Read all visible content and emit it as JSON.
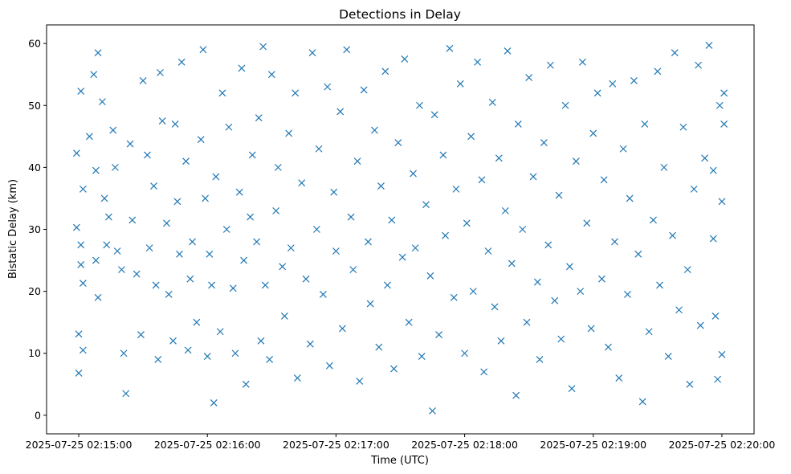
{
  "chart_data": {
    "type": "scatter",
    "title": "Detections in Delay",
    "xlabel": "Time (UTC)",
    "ylabel": "Bistatic Delay (km)",
    "marker": "x",
    "color": "#1f77b4",
    "grid": false,
    "legend": "none",
    "xlim": [
      "2025-07-25 02:14:45",
      "2025-07-25 02:20:15"
    ],
    "ylim": [
      -3,
      63
    ],
    "x_ticks": [
      "2025-07-25 02:15:00",
      "2025-07-25 02:16:00",
      "2025-07-25 02:17:00",
      "2025-07-25 02:18:00",
      "2025-07-25 02:19:00",
      "2025-07-25 02:20:00"
    ],
    "y_ticks": [
      "0",
      "10",
      "20",
      "30",
      "40",
      "50",
      "60"
    ],
    "y_tick_values": [
      0,
      10,
      20,
      30,
      40,
      50,
      60
    ],
    "series": [
      {
        "points": [
          [
            "02:14:59",
            42.3
          ],
          [
            "02:14:59",
            30.3
          ],
          [
            "02:15:00",
            13.1
          ],
          [
            "02:15:01",
            52.3
          ],
          [
            "02:15:01",
            27.5
          ],
          [
            "02:15:01",
            24.3
          ],
          [
            "02:15:02",
            21.3
          ],
          [
            "02:15:02",
            10.5
          ],
          [
            "02:15:00",
            6.8
          ],
          [
            "02:15:02",
            36.5
          ],
          [
            "02:15:05",
            45.0
          ],
          [
            "02:15:07",
            55.0
          ],
          [
            "02:15:09",
            58.5
          ],
          [
            "02:15:08",
            39.5
          ],
          [
            "02:15:08",
            25.0
          ],
          [
            "02:15:09",
            19.0
          ],
          [
            "02:15:11",
            50.6
          ],
          [
            "02:15:12",
            35.0
          ],
          [
            "02:15:13",
            27.5
          ],
          [
            "02:15:14",
            32.0
          ],
          [
            "02:15:16",
            46.0
          ],
          [
            "02:15:17",
            40.0
          ],
          [
            "02:15:18",
            26.5
          ],
          [
            "02:15:20",
            23.5
          ],
          [
            "02:15:21",
            10.0
          ],
          [
            "02:15:22",
            3.5
          ],
          [
            "02:15:24",
            43.8
          ],
          [
            "02:15:25",
            31.5
          ],
          [
            "02:15:27",
            22.8
          ],
          [
            "02:15:29",
            13.0
          ],
          [
            "02:15:30",
            54.0
          ],
          [
            "02:15:32",
            42.0
          ],
          [
            "02:15:33",
            27.0
          ],
          [
            "02:15:35",
            37.0
          ],
          [
            "02:15:36",
            21.0
          ],
          [
            "02:15:37",
            9.0
          ],
          [
            "02:15:38",
            55.3
          ],
          [
            "02:15:39",
            47.5
          ],
          [
            "02:15:41",
            31.0
          ],
          [
            "02:15:42",
            19.5
          ],
          [
            "02:15:44",
            12.0
          ],
          [
            "02:15:45",
            47.0
          ],
          [
            "02:15:46",
            34.5
          ],
          [
            "02:15:47",
            26.0
          ],
          [
            "02:15:48",
            57.0
          ],
          [
            "02:15:50",
            41.0
          ],
          [
            "02:15:51",
            10.5
          ],
          [
            "02:15:52",
            22.0
          ],
          [
            "02:15:53",
            28.0
          ],
          [
            "02:15:55",
            15.0
          ],
          [
            "02:15:57",
            44.5
          ],
          [
            "02:15:59",
            35.0
          ],
          [
            "02:16:00",
            9.5
          ],
          [
            "02:15:58",
            59.0
          ],
          [
            "02:16:01",
            26.0
          ],
          [
            "02:16:02",
            21.0
          ],
          [
            "02:16:03",
            2.0
          ],
          [
            "02:16:04",
            38.5
          ],
          [
            "02:16:06",
            13.5
          ],
          [
            "02:16:07",
            52.0
          ],
          [
            "02:16:09",
            30.0
          ],
          [
            "02:16:10",
            46.5
          ],
          [
            "02:16:12",
            20.5
          ],
          [
            "02:16:13",
            10.0
          ],
          [
            "02:16:15",
            36.0
          ],
          [
            "02:16:16",
            56.0
          ],
          [
            "02:16:17",
            25.0
          ],
          [
            "02:16:18",
            5.0
          ],
          [
            "02:16:20",
            32.0
          ],
          [
            "02:16:21",
            42.0
          ],
          [
            "02:16:23",
            28.0
          ],
          [
            "02:16:24",
            48.0
          ],
          [
            "02:16:25",
            12.0
          ],
          [
            "02:16:26",
            59.5
          ],
          [
            "02:16:27",
            21.0
          ],
          [
            "02:16:29",
            9.0
          ],
          [
            "02:16:30",
            55.0
          ],
          [
            "02:16:32",
            33.0
          ],
          [
            "02:16:33",
            40.0
          ],
          [
            "02:16:35",
            24.0
          ],
          [
            "02:16:36",
            16.0
          ],
          [
            "02:16:38",
            45.5
          ],
          [
            "02:16:39",
            27.0
          ],
          [
            "02:16:41",
            52.0
          ],
          [
            "02:16:42",
            6.0
          ],
          [
            "02:16:44",
            37.5
          ],
          [
            "02:16:46",
            22.0
          ],
          [
            "02:16:48",
            11.5
          ],
          [
            "02:16:49",
            58.5
          ],
          [
            "02:16:51",
            30.0
          ],
          [
            "02:16:52",
            43.0
          ],
          [
            "02:16:54",
            19.5
          ],
          [
            "02:16:56",
            53.0
          ],
          [
            "02:16:57",
            8.0
          ],
          [
            "02:16:59",
            36.0
          ],
          [
            "02:17:00",
            26.5
          ],
          [
            "02:17:02",
            49.0
          ],
          [
            "02:17:03",
            14.0
          ],
          [
            "02:17:05",
            59.0
          ],
          [
            "02:17:07",
            32.0
          ],
          [
            "02:17:08",
            23.5
          ],
          [
            "02:17:10",
            41.0
          ],
          [
            "02:17:11",
            5.5
          ],
          [
            "02:17:13",
            52.5
          ],
          [
            "02:17:15",
            28.0
          ],
          [
            "02:17:16",
            18.0
          ],
          [
            "02:17:18",
            46.0
          ],
          [
            "02:17:20",
            11.0
          ],
          [
            "02:17:21",
            37.0
          ],
          [
            "02:17:23",
            55.5
          ],
          [
            "02:17:24",
            21.0
          ],
          [
            "02:17:26",
            31.5
          ],
          [
            "02:17:27",
            7.5
          ],
          [
            "02:17:29",
            44.0
          ],
          [
            "02:17:31",
            25.5
          ],
          [
            "02:17:32",
            57.5
          ],
          [
            "02:17:34",
            15.0
          ],
          [
            "02:17:36",
            39.0
          ],
          [
            "02:17:37",
            27.0
          ],
          [
            "02:17:39",
            50.0
          ],
          [
            "02:17:40",
            9.5
          ],
          [
            "02:17:42",
            34.0
          ],
          [
            "02:17:44",
            22.5
          ],
          [
            "02:17:45",
            0.7
          ],
          [
            "02:17:46",
            48.5
          ],
          [
            "02:17:48",
            13.0
          ],
          [
            "02:17:50",
            42.0
          ],
          [
            "02:17:51",
            29.0
          ],
          [
            "02:17:53",
            59.2
          ],
          [
            "02:17:55",
            19.0
          ],
          [
            "02:17:56",
            36.5
          ],
          [
            "02:17:58",
            53.5
          ],
          [
            "02:18:00",
            10.0
          ],
          [
            "02:18:01",
            31.0
          ],
          [
            "02:18:03",
            45.0
          ],
          [
            "02:18:04",
            20.0
          ],
          [
            "02:18:06",
            57.0
          ],
          [
            "02:18:08",
            38.0
          ],
          [
            "02:18:09",
            7.0
          ],
          [
            "02:18:11",
            26.5
          ],
          [
            "02:18:13",
            50.5
          ],
          [
            "02:18:14",
            17.5
          ],
          [
            "02:18:16",
            41.5
          ],
          [
            "02:18:17",
            12.0
          ],
          [
            "02:18:19",
            33.0
          ],
          [
            "02:18:20",
            58.8
          ],
          [
            "02:18:22",
            24.5
          ],
          [
            "02:18:24",
            3.2
          ],
          [
            "02:18:25",
            47.0
          ],
          [
            "02:18:27",
            30.0
          ],
          [
            "02:18:29",
            15.0
          ],
          [
            "02:18:30",
            54.5
          ],
          [
            "02:18:32",
            38.5
          ],
          [
            "02:18:34",
            21.5
          ],
          [
            "02:18:35",
            9.0
          ],
          [
            "02:18:37",
            44.0
          ],
          [
            "02:18:39",
            27.5
          ],
          [
            "02:18:40",
            56.5
          ],
          [
            "02:18:42",
            18.5
          ],
          [
            "02:18:44",
            35.5
          ],
          [
            "02:18:45",
            12.3
          ],
          [
            "02:18:47",
            50.0
          ],
          [
            "02:18:49",
            24.0
          ],
          [
            "02:18:50",
            4.3
          ],
          [
            "02:18:52",
            41.0
          ],
          [
            "02:18:54",
            20.0
          ],
          [
            "02:18:55",
            57.0
          ],
          [
            "02:18:57",
            31.0
          ],
          [
            "02:18:59",
            14.0
          ],
          [
            "02:19:00",
            45.5
          ],
          [
            "02:19:02",
            52.0
          ],
          [
            "02:19:04",
            22.0
          ],
          [
            "02:19:05",
            38.0
          ],
          [
            "02:19:07",
            11.0
          ],
          [
            "02:19:09",
            53.5
          ],
          [
            "02:19:10",
            28.0
          ],
          [
            "02:19:12",
            6.0
          ],
          [
            "02:19:14",
            43.0
          ],
          [
            "02:19:16",
            19.5
          ],
          [
            "02:19:17",
            35.0
          ],
          [
            "02:19:19",
            54.0
          ],
          [
            "02:19:21",
            26.0
          ],
          [
            "02:19:23",
            2.2
          ],
          [
            "02:19:24",
            47.0
          ],
          [
            "02:19:26",
            13.5
          ],
          [
            "02:19:28",
            31.5
          ],
          [
            "02:19:30",
            55.5
          ],
          [
            "02:19:31",
            21.0
          ],
          [
            "02:19:33",
            40.0
          ],
          [
            "02:19:35",
            9.5
          ],
          [
            "02:19:37",
            29.0
          ],
          [
            "02:19:38",
            58.5
          ],
          [
            "02:19:40",
            17.0
          ],
          [
            "02:19:42",
            46.5
          ],
          [
            "02:19:44",
            23.5
          ],
          [
            "02:19:45",
            5.0
          ],
          [
            "02:19:47",
            36.5
          ],
          [
            "02:19:49",
            56.5
          ],
          [
            "02:19:50",
            14.5
          ],
          [
            "02:19:52",
            41.5
          ],
          [
            "02:19:54",
            59.7
          ],
          [
            "02:19:56",
            28.5
          ],
          [
            "02:19:57",
            16.0
          ],
          [
            "02:19:59",
            50.0
          ],
          [
            "02:20:00",
            9.8
          ],
          [
            "02:20:00",
            34.5
          ],
          [
            "02:20:01",
            47.0
          ],
          [
            "02:20:01",
            52.0
          ],
          [
            "02:19:58",
            5.8
          ],
          [
            "02:19:56",
            39.5
          ]
        ]
      }
    ]
  }
}
